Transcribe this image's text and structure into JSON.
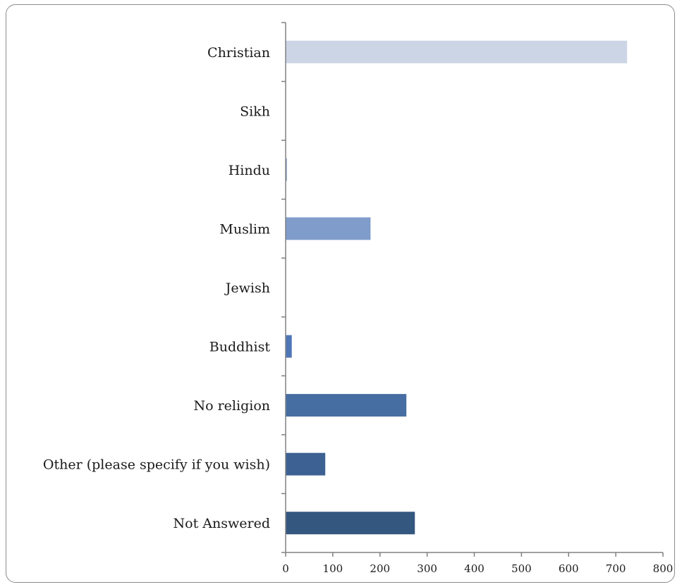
{
  "chart_data": {
    "type": "bar",
    "orientation": "horizontal",
    "title": "",
    "xlabel": "",
    "ylabel": "",
    "categories": [
      "Christian",
      "Sikh",
      "Hindu",
      "Muslim",
      "Jewish",
      "Buddhist",
      "No religion",
      "Other (please specify if you wish)",
      "Not Answered"
    ],
    "values": [
      724,
      0,
      3,
      180,
      0,
      13,
      256,
      84,
      274
    ],
    "bar_colors": [
      "#ccd5e6",
      "#b8c7df",
      "#9fb3d6",
      "#7f9ccb",
      "#6789c1",
      "#4f76b6",
      "#466ea3",
      "#3d6192",
      "#34577f"
    ],
    "xlim": [
      0,
      800
    ],
    "xticks": [
      0,
      100,
      200,
      300,
      400,
      500,
      600,
      700,
      800
    ],
    "grid": false,
    "legend": "none"
  }
}
